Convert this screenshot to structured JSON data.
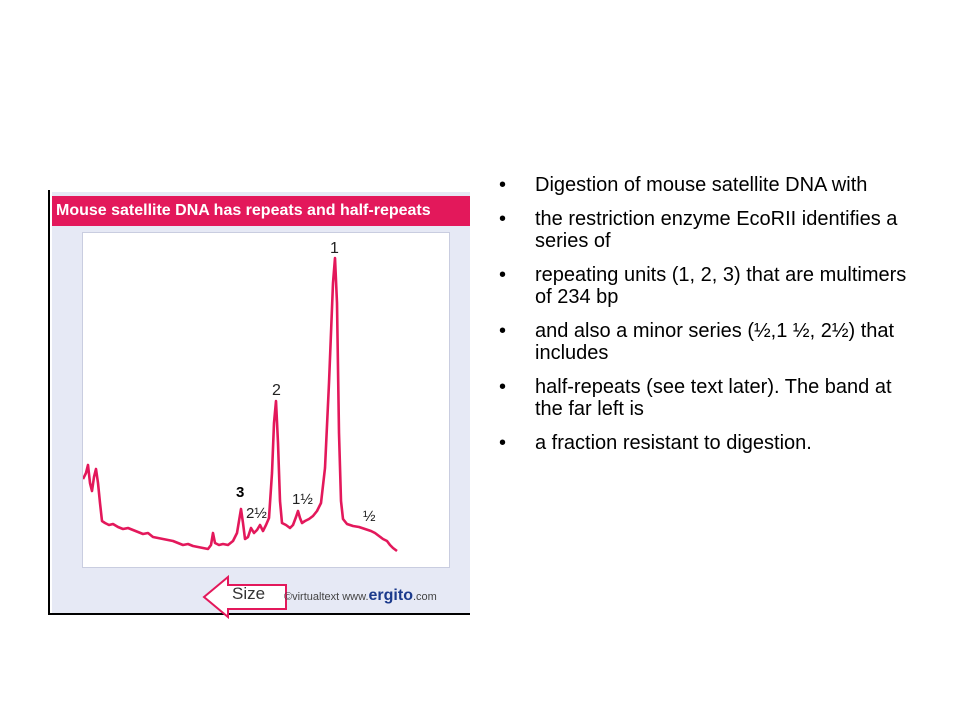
{
  "figure": {
    "title": "Mouse satellite DNA has repeats and half-repeats",
    "peak_labels": [
      "1",
      "2",
      "3",
      "2½",
      "1½",
      "½"
    ],
    "size_label": "Size",
    "credit_prefix": "©virtualtext  www.",
    "credit_brand": "ergito",
    "credit_suffix": ".com",
    "trace_color": "#e3185b",
    "title_bg": "#e3185b"
  },
  "bullets": [
    "Digestion of mouse satellite DNA with",
    "the restriction enzyme EcoRII identifies a series of",
    "repeating units (1, 2, 3) that are multimers of 234 bp",
    "and also a minor series (½,1 ½, 2½) that includes",
    "half-repeats (see text later). The band at the far left is",
    "a fraction resistant to digestion."
  ],
  "bullet_glyph": "•"
}
